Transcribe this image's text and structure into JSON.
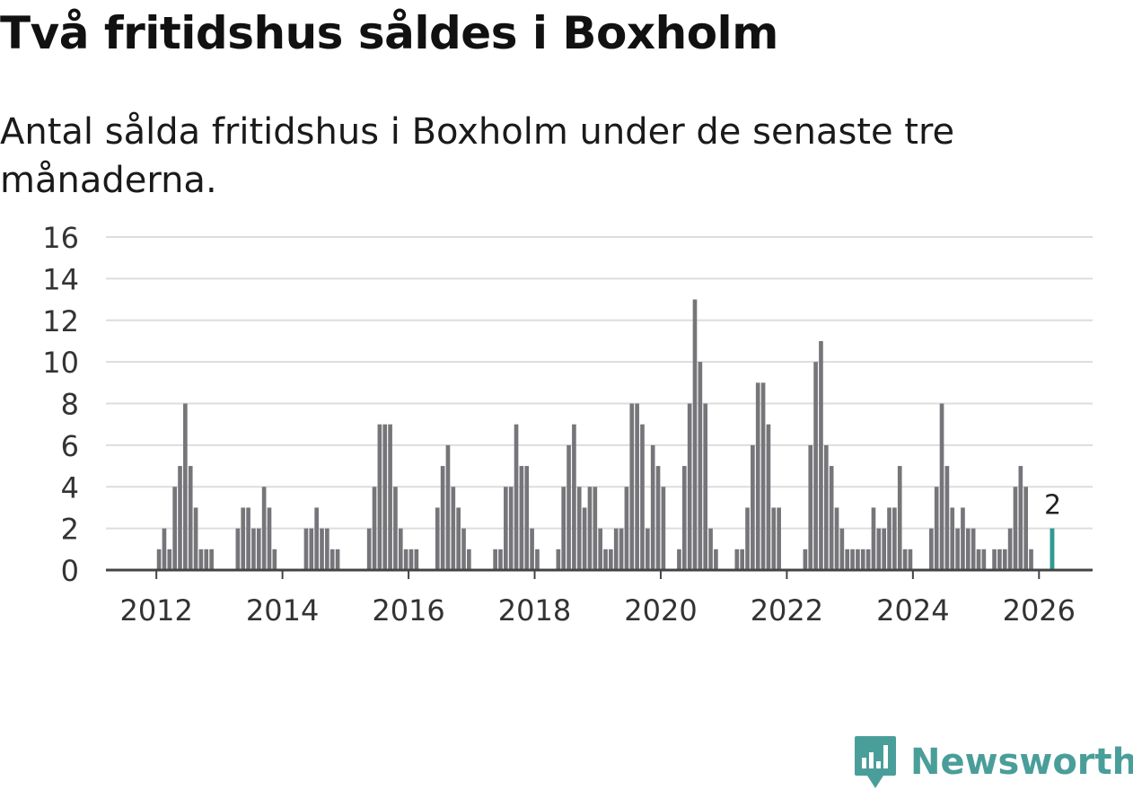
{
  "header": {
    "title": "Två fritidshus såldes i Boxholm",
    "subtitle": "Antal sålda fritidshus i Boxholm under de senaste tre månaderna."
  },
  "brand": {
    "name": "Newsworthy",
    "icon": "newsworthy-logo-icon"
  },
  "colors": {
    "bar": "#767579",
    "highlight": "#2c9c93",
    "grid": "#dddddd",
    "axis": "#444444",
    "brand": "#4a9e9a"
  },
  "chart_data": {
    "type": "bar",
    "title": "Två fritidshus såldes i Boxholm",
    "subtitle": "Antal sålda fritidshus i Boxholm under de senaste tre månaderna.",
    "xlabel": "",
    "ylabel": "",
    "ylim": [
      0,
      16
    ],
    "yticks": [
      0,
      2,
      4,
      6,
      8,
      10,
      12,
      14,
      16
    ],
    "xlim": [
      2011.2,
      2026.85
    ],
    "xticks": [
      2012,
      2014,
      2016,
      2018,
      2020,
      2022,
      2024,
      2026
    ],
    "grid": true,
    "start_year": 2012,
    "start_month": 1,
    "values": [
      1,
      2,
      1,
      4,
      5,
      8,
      5,
      3,
      1,
      1,
      1,
      0,
      0,
      0,
      0,
      2,
      3,
      3,
      2,
      2,
      4,
      3,
      1,
      0,
      0,
      0,
      0,
      0,
      2,
      2,
      3,
      2,
      2,
      1,
      1,
      0,
      0,
      0,
      0,
      0,
      2,
      4,
      7,
      7,
      7,
      4,
      2,
      1,
      1,
      1,
      0,
      0,
      0,
      3,
      5,
      6,
      4,
      3,
      2,
      1,
      0,
      0,
      0,
      0,
      1,
      1,
      4,
      4,
      7,
      5,
      5,
      2,
      1,
      0,
      0,
      0,
      1,
      4,
      6,
      7,
      4,
      3,
      4,
      4,
      2,
      1,
      1,
      2,
      2,
      4,
      8,
      8,
      7,
      2,
      6,
      5,
      4,
      0,
      0,
      1,
      5,
      8,
      13,
      10,
      8,
      2,
      1,
      0,
      0,
      0,
      1,
      1,
      3,
      6,
      9,
      9,
      7,
      3,
      3,
      0,
      0,
      0,
      0,
      1,
      6,
      10,
      11,
      6,
      5,
      3,
      2,
      1,
      1,
      1,
      1,
      1,
      3,
      2,
      2,
      3,
      3,
      5,
      1,
      1,
      0,
      0,
      0,
      2,
      4,
      8,
      5,
      3,
      2,
      3,
      2,
      2,
      1,
      1,
      0,
      1,
      1,
      1,
      2,
      4,
      5,
      4,
      1,
      0,
      0,
      0,
      2
    ],
    "highlight": {
      "label": "2",
      "value": 2,
      "year": 2026,
      "month": 3
    }
  }
}
